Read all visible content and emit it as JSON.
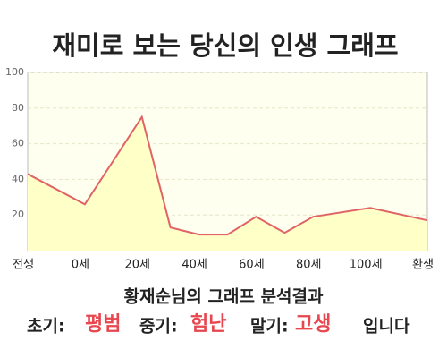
{
  "chart_data": {
    "type": "area",
    "title": "재미로 보는 당신의 인생 그래프",
    "x": [
      -20,
      0,
      20,
      30,
      40,
      50,
      60,
      70,
      80,
      100,
      120
    ],
    "values": [
      43,
      26,
      75,
      13,
      9,
      9,
      19,
      10,
      19,
      24,
      17
    ],
    "xlim": [
      -20,
      120
    ],
    "xticks": [
      {
        "value": -20,
        "label": "전생"
      },
      {
        "value": 0,
        "label": "0세"
      },
      {
        "value": 20,
        "label": "20세"
      },
      {
        "value": 40,
        "label": "40세"
      },
      {
        "value": 60,
        "label": "60세"
      },
      {
        "value": 80,
        "label": "80세"
      },
      {
        "value": 100,
        "label": "100세"
      },
      {
        "value": 120,
        "label": "환생"
      }
    ],
    "ylim": [
      0,
      100
    ],
    "yticks": [
      20,
      40,
      60,
      80,
      100
    ],
    "grid": true,
    "color": "#e06466",
    "fill": "#ffffc8"
  },
  "analysis": {
    "heading": "황재순님의 그래프 분석결과",
    "early_label": "초기:",
    "early": "평범",
    "middle_label": "중기:",
    "middle": "험난",
    "late_label": "말기:",
    "late": "고생",
    "ending": "입니다"
  }
}
